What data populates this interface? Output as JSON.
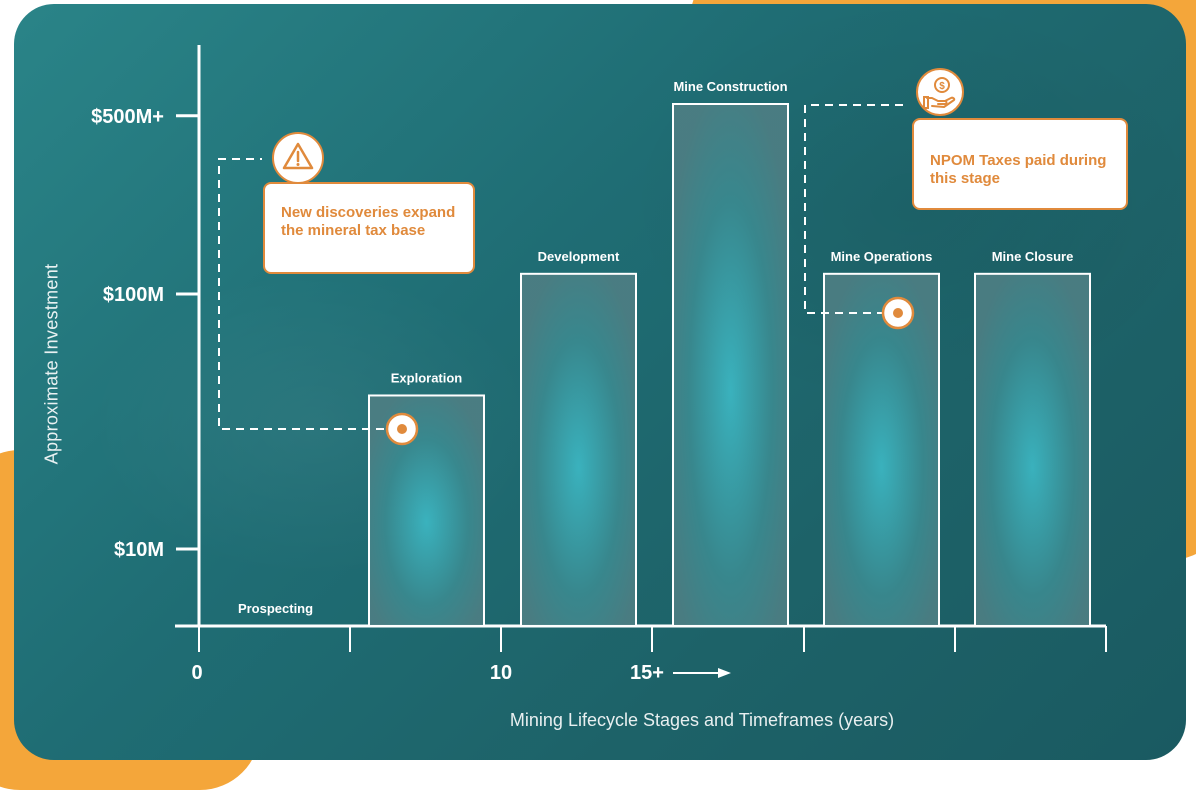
{
  "chart_data": {
    "type": "bar",
    "y_scale": "log",
    "ylabel": "Approximate Investment",
    "xlabel": "Mining Lifecycle Stages and Timeframes (years)",
    "y_ticks": [
      {
        "value": 10,
        "label": "$10M"
      },
      {
        "value": 100,
        "label": "$100M"
      },
      {
        "value": 500,
        "label": "$500M+"
      }
    ],
    "x_ticks": [
      {
        "value": 0,
        "label": "0"
      },
      {
        "value": 10,
        "label": "10"
      },
      {
        "value": 15,
        "label": "15+"
      }
    ],
    "categories": [
      "Prospecting",
      "Exploration",
      "Development",
      "Mine Construction",
      "Mine Operations",
      "Mine Closure"
    ],
    "values": [
      5,
      40,
      120,
      600,
      120,
      120
    ]
  },
  "callouts": {
    "discoveries": "New discoveries expand the mineral tax base",
    "npom": "NPOM Taxes paid during this stage"
  },
  "icons": {
    "discoveries": "warning-icon",
    "npom": "money-hand-icon"
  },
  "colors": {
    "accent": "#e08a3c",
    "background_orange": "#f4a63a",
    "panel": "#1f6d74"
  }
}
